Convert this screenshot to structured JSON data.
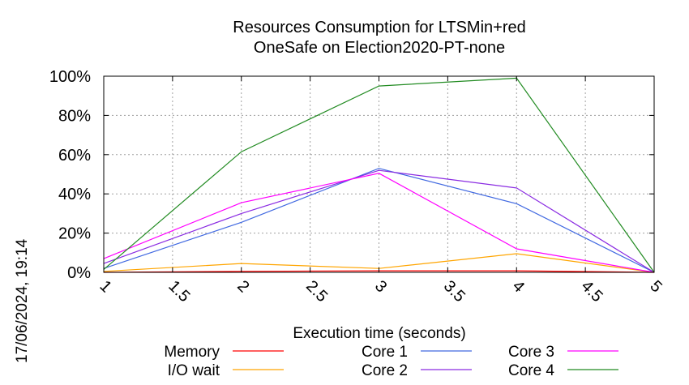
{
  "chart_data": {
    "type": "line",
    "title_lines": [
      "Resources Consumption for LTSMin+red",
      "OneSafe on Election2020-PT-none"
    ],
    "xlabel": "Execution time (seconds)",
    "ylabel": "",
    "xlim": [
      1,
      5
    ],
    "ylim": [
      0,
      100
    ],
    "xticks": [
      "1",
      "1.5",
      "2",
      "2.5",
      "3",
      "3.5",
      "4",
      "4.5",
      "5"
    ],
    "yticks": [
      "0%",
      "20%",
      "40%",
      "60%",
      "80%",
      "100%"
    ],
    "grid": true,
    "legend_position": "bottom",
    "timestamp": "17/06/2024, 19:14",
    "series": [
      {
        "name": "Memory",
        "color": "#ff0000",
        "x": [
          1,
          2,
          3,
          4,
          5
        ],
        "y": [
          0,
          0.5,
          0.8,
          0.8,
          0
        ]
      },
      {
        "name": "I/O wait",
        "color": "#ffa500",
        "x": [
          1,
          2,
          3,
          4,
          5
        ],
        "y": [
          0.5,
          4.5,
          2,
          9.5,
          0
        ]
      },
      {
        "name": "Core 1",
        "color": "#4169e1",
        "x": [
          1,
          2,
          3,
          4,
          5
        ],
        "y": [
          2,
          25.5,
          53,
          35,
          0
        ]
      },
      {
        "name": "Core 2",
        "color": "#8a2be2",
        "x": [
          1,
          2,
          3,
          4,
          5
        ],
        "y": [
          4.5,
          30,
          52,
          43,
          0
        ]
      },
      {
        "name": "Core 3",
        "color": "#ff00ff",
        "x": [
          1,
          2,
          3,
          4,
          5
        ],
        "y": [
          7,
          35.5,
          50.5,
          12,
          0
        ]
      },
      {
        "name": "Core 4",
        "color": "#228b22",
        "x": [
          1,
          2,
          3,
          4,
          5
        ],
        "y": [
          1.5,
          61.5,
          95,
          99,
          0
        ]
      }
    ]
  }
}
